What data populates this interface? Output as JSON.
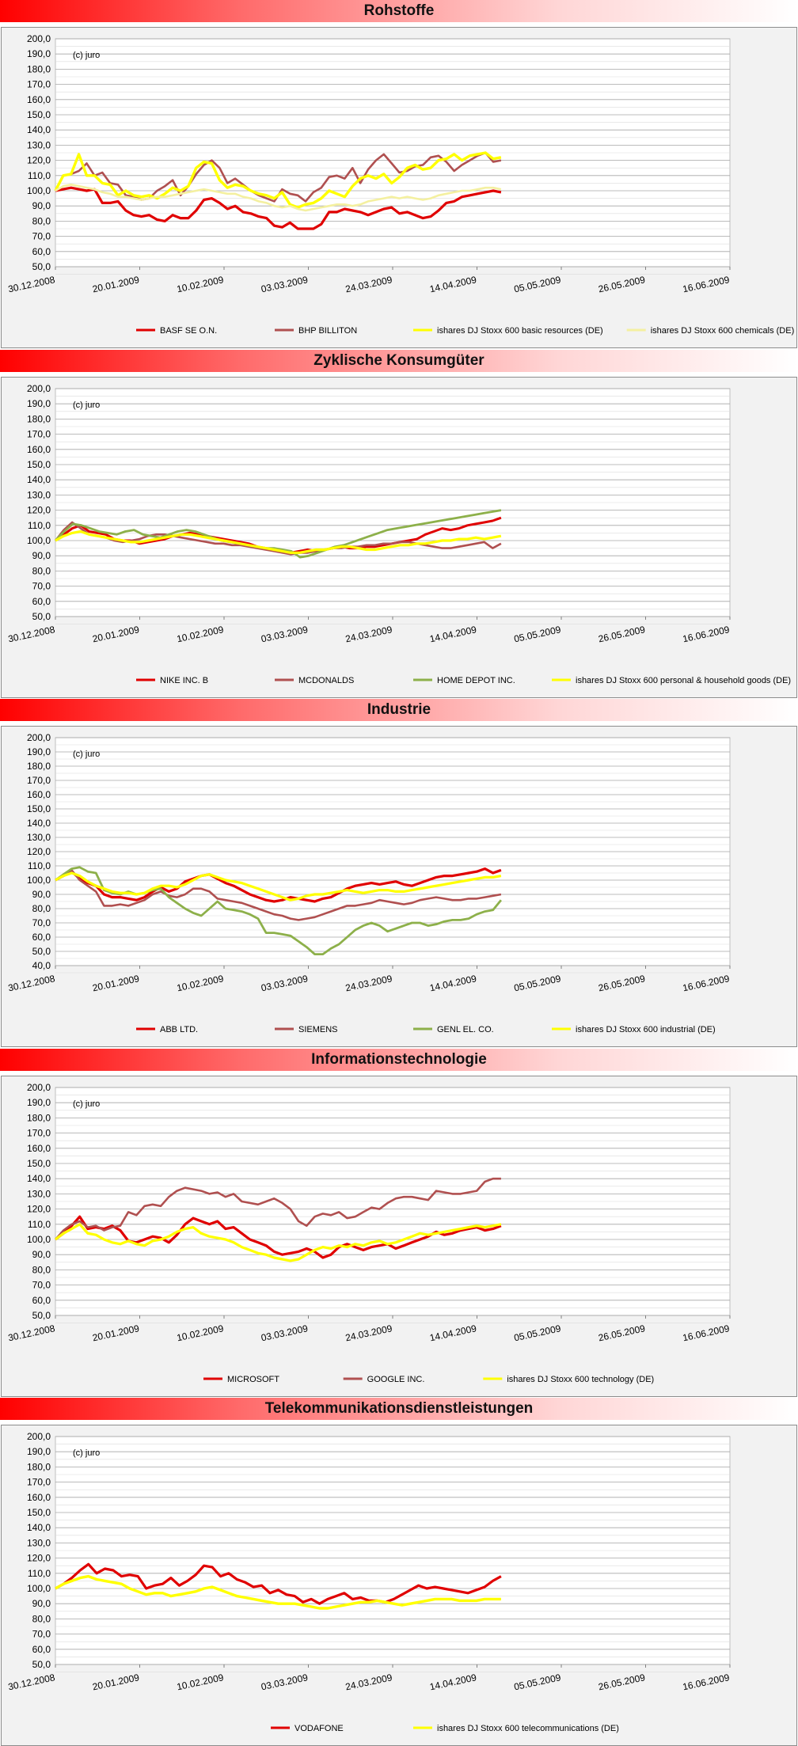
{
  "watermark": "(c) juro",
  "x_ticks": [
    "30.12.2008",
    "20.01.2009",
    "10.02.2009",
    "03.03.2009",
    "24.03.2009",
    "14.04.2009",
    "05.05.2009",
    "26.05.2009",
    "16.06.2009"
  ],
  "colors": {
    "red": "#e00000",
    "brown": "#b05050",
    "yellow": "#ffff00",
    "lightyellow": "#f4f0a0",
    "green": "#8db04a"
  },
  "chart_data": [
    {
      "type": "line",
      "title": "Rohstoffe",
      "ylim": [
        50,
        200
      ],
      "y_step": 10,
      "grid": true,
      "legend": "bottom",
      "series": [
        {
          "name": "BASF SE O.N.",
          "color": "#e00000",
          "width": 3.2,
          "values": [
            100,
            101,
            102,
            101,
            100,
            101,
            92,
            92,
            93,
            87,
            84,
            83,
            84,
            81,
            80,
            84,
            82,
            82,
            87,
            94,
            95,
            92,
            88,
            90,
            86,
            85,
            83,
            82,
            77,
            76,
            79,
            75,
            75,
            75,
            78,
            86,
            86,
            88,
            87,
            86,
            84,
            86,
            88,
            89,
            85,
            86,
            84,
            82,
            83,
            87,
            92,
            93,
            96,
            97,
            98,
            99,
            100,
            99
          ]
        },
        {
          "name": "BHP BILLITON",
          "color": "#b05050",
          "width": 2.6,
          "values": [
            100,
            110,
            111,
            113,
            118,
            110,
            112,
            105,
            104,
            97,
            96,
            94,
            95,
            100,
            103,
            107,
            97,
            103,
            111,
            117,
            120,
            115,
            105,
            108,
            104,
            100,
            97,
            95,
            93,
            101,
            98,
            97,
            93,
            99,
            102,
            109,
            110,
            108,
            115,
            105,
            114,
            120,
            124,
            118,
            112,
            113,
            116,
            117,
            122,
            123,
            119,
            113,
            117,
            120,
            123,
            125,
            119,
            120
          ]
        },
        {
          "name": "ishares DJ Stoxx 600 basic resources  (DE)",
          "color": "#ffff00",
          "width": 3.4,
          "values": [
            100,
            110,
            111,
            124,
            110,
            110,
            105,
            104,
            97,
            100,
            97,
            96,
            97,
            95,
            98,
            102,
            100,
            103,
            115,
            119,
            118,
            107,
            102,
            104,
            103,
            100,
            98,
            97,
            95,
            99,
            91,
            89,
            91,
            92,
            95,
            100,
            98,
            96,
            103,
            108,
            110,
            108,
            111,
            105,
            109,
            115,
            117,
            114,
            115,
            120,
            121,
            124,
            120,
            123,
            124,
            125,
            121,
            122
          ]
        },
        {
          "name": "ishares DJ Stoxx 600 chemicals  (DE)",
          "color": "#f4f0a0",
          "width": 2.6,
          "values": [
            100,
            103,
            104,
            103,
            102,
            101,
            99,
            98,
            96,
            96,
            95,
            94,
            95,
            96,
            96,
            97,
            98,
            99,
            100,
            101,
            100,
            99,
            98,
            98,
            96,
            95,
            93,
            92,
            90,
            89,
            90,
            88,
            87,
            88,
            89,
            90,
            91,
            91,
            90,
            91,
            93,
            94,
            95,
            96,
            95,
            96,
            95,
            94,
            95,
            97,
            98,
            99,
            100,
            100,
            101,
            102,
            102,
            101
          ]
        }
      ]
    },
    {
      "type": "line",
      "title": "Zyklische Konsumgüter",
      "ylim": [
        50,
        200
      ],
      "y_step": 10,
      "grid": true,
      "legend": "bottom",
      "series": [
        {
          "name": "NIKE INC. B",
          "color": "#e00000",
          "width": 3,
          "values": [
            100,
            104,
            108,
            110,
            106,
            105,
            104,
            101,
            100,
            100,
            98,
            99,
            100,
            101,
            103,
            104,
            105,
            104,
            103,
            102,
            101,
            100,
            99,
            98,
            96,
            95,
            94,
            93,
            92,
            93,
            94,
            93,
            94,
            95,
            96,
            95,
            95,
            96,
            96,
            97,
            98,
            99,
            100,
            101,
            104,
            106,
            108,
            107,
            108,
            110,
            111,
            112,
            113,
            115
          ]
        },
        {
          "name": "MCDONALDS",
          "color": "#b05050",
          "width": 2.6,
          "values": [
            100,
            107,
            112,
            108,
            104,
            103,
            102,
            100,
            99,
            100,
            101,
            103,
            104,
            104,
            103,
            102,
            101,
            100,
            99,
            98,
            98,
            97,
            97,
            96,
            95,
            94,
            93,
            92,
            91,
            92,
            92,
            93,
            94,
            95,
            95,
            96,
            96,
            97,
            97,
            98,
            98,
            99,
            99,
            98,
            97,
            96,
            95,
            95,
            96,
            97,
            98,
            99,
            95,
            98
          ]
        },
        {
          "name": "HOME DEPOT INC.",
          "color": "#8db04a",
          "width": 2.8,
          "values": [
            100,
            106,
            111,
            110,
            108,
            106,
            105,
            104,
            106,
            107,
            104,
            103,
            102,
            104,
            106,
            107,
            106,
            104,
            102,
            100,
            99,
            98,
            97,
            96,
            95,
            95,
            94,
            93,
            89,
            90,
            92,
            94,
            96,
            97,
            99,
            101,
            103,
            105,
            107,
            108,
            109,
            110,
            111,
            112,
            113,
            114,
            115,
            116,
            117,
            118,
            119,
            120
          ]
        },
        {
          "name": "ishares DJ Stoxx 600 personal & household goods (DE)",
          "color": "#ffff00",
          "width": 3.2,
          "values": [
            100,
            103,
            105,
            106,
            104,
            103,
            102,
            101,
            100,
            99,
            99,
            100,
            101,
            102,
            103,
            104,
            104,
            103,
            102,
            101,
            100,
            99,
            98,
            97,
            96,
            95,
            94,
            93,
            92,
            92,
            93,
            94,
            94,
            95,
            96,
            96,
            95,
            94,
            94,
            95,
            96,
            97,
            97,
            98,
            98,
            99,
            100,
            100,
            101,
            101,
            102,
            101,
            102,
            103
          ]
        }
      ]
    },
    {
      "type": "line",
      "title": "Industrie",
      "ylim": [
        40,
        200
      ],
      "y_step": 10,
      "grid": true,
      "legend": "bottom",
      "series": [
        {
          "name": "ABB LTD.",
          "color": "#e00000",
          "width": 3.2,
          "values": [
            100,
            103,
            106,
            101,
            98,
            96,
            90,
            88,
            88,
            87,
            86,
            88,
            92,
            95,
            92,
            94,
            99,
            101,
            103,
            104,
            101,
            98,
            96,
            93,
            90,
            88,
            86,
            85,
            86,
            88,
            87,
            86,
            85,
            87,
            88,
            91,
            94,
            96,
            97,
            98,
            97,
            98,
            99,
            97,
            96,
            98,
            100,
            102,
            103,
            103,
            104,
            105,
            106,
            108,
            105,
            107
          ]
        },
        {
          "name": "SIEMENS",
          "color": "#b05050",
          "width": 2.6,
          "values": [
            100,
            103,
            107,
            100,
            96,
            92,
            82,
            82,
            83,
            82,
            84,
            86,
            90,
            92,
            89,
            88,
            90,
            94,
            94,
            92,
            87,
            86,
            85,
            84,
            82,
            80,
            78,
            76,
            75,
            73,
            72,
            73,
            74,
            76,
            78,
            80,
            82,
            82,
            83,
            84,
            86,
            85,
            84,
            83,
            84,
            86,
            87,
            88,
            87,
            86,
            86,
            87,
            87,
            88,
            89,
            90
          ]
        },
        {
          "name": "GENL EL. CO.",
          "color": "#8db04a",
          "width": 2.8,
          "values": [
            100,
            104,
            108,
            109,
            106,
            105,
            93,
            91,
            90,
            92,
            90,
            91,
            93,
            94,
            88,
            84,
            80,
            77,
            75,
            80,
            85,
            80,
            79,
            78,
            76,
            73,
            63,
            63,
            62,
            61,
            57,
            53,
            48,
            48,
            52,
            55,
            60,
            65,
            68,
            70,
            68,
            64,
            66,
            68,
            70,
            70,
            68,
            69,
            71,
            72,
            72,
            73,
            76,
            78,
            79,
            86
          ]
        },
        {
          "name": "ishares DJ Stoxx 600 industrial (DE)",
          "color": "#ffff00",
          "width": 3.2,
          "values": [
            100,
            103,
            105,
            103,
            99,
            96,
            94,
            92,
            91,
            91,
            90,
            91,
            94,
            96,
            96,
            95,
            97,
            100,
            103,
            104,
            102,
            100,
            99,
            98,
            96,
            94,
            92,
            90,
            88,
            86,
            87,
            89,
            90,
            90,
            91,
            92,
            93,
            92,
            91,
            92,
            93,
            93,
            92,
            92,
            93,
            94,
            95,
            96,
            97,
            98,
            99,
            100,
            101,
            102,
            102,
            103
          ]
        }
      ]
    },
    {
      "type": "line",
      "title": "Informationstechnologie",
      "ylim": [
        50,
        200
      ],
      "y_step": 10,
      "grid": true,
      "legend": "bottom",
      "series": [
        {
          "name": "MICROSOFT",
          "color": "#e00000",
          "width": 3.2,
          "values": [
            100,
            104,
            109,
            115,
            107,
            108,
            107,
            109,
            106,
            99,
            98,
            100,
            102,
            101,
            98,
            103,
            110,
            114,
            112,
            110,
            112,
            107,
            108,
            104,
            100,
            98,
            96,
            92,
            90,
            91,
            92,
            94,
            92,
            88,
            90,
            95,
            97,
            95,
            93,
            95,
            96,
            97,
            94,
            96,
            98,
            100,
            102,
            105,
            103,
            104,
            106,
            107,
            108,
            106,
            107,
            109
          ]
        },
        {
          "name": "GOOGLE INC.",
          "color": "#b05050",
          "width": 2.6,
          "values": [
            100,
            106,
            110,
            112,
            108,
            109,
            106,
            108,
            109,
            118,
            116,
            122,
            123,
            122,
            128,
            132,
            134,
            133,
            132,
            130,
            131,
            128,
            130,
            125,
            124,
            123,
            125,
            127,
            124,
            120,
            112,
            109,
            115,
            117,
            116,
            118,
            114,
            115,
            118,
            121,
            120,
            124,
            127,
            128,
            128,
            127,
            126,
            132,
            131,
            130,
            130,
            131,
            132,
            138,
            140,
            140
          ]
        },
        {
          "name": "ishares DJ Stoxx 600 technology  (DE)",
          "color": "#ffff00",
          "width": 3.2,
          "values": [
            100,
            104,
            107,
            110,
            104,
            103,
            100,
            98,
            97,
            99,
            97,
            96,
            99,
            100,
            102,
            105,
            107,
            108,
            104,
            102,
            101,
            100,
            98,
            95,
            93,
            91,
            90,
            88,
            87,
            86,
            87,
            90,
            93,
            95,
            94,
            96,
            95,
            97,
            96,
            98,
            99,
            97,
            98,
            100,
            102,
            104,
            103,
            104,
            105,
            106,
            107,
            108,
            109,
            108,
            109,
            110
          ]
        }
      ]
    },
    {
      "type": "line",
      "title": "Telekommunikationsdienstleistungen",
      "ylim": [
        50,
        200
      ],
      "y_step": 10,
      "grid": true,
      "legend": "bottom",
      "series": [
        {
          "name": "VODAFONE",
          "color": "#e00000",
          "width": 3.2,
          "values": [
            100,
            103,
            107,
            112,
            116,
            110,
            113,
            112,
            108,
            109,
            108,
            100,
            102,
            103,
            107,
            102,
            105,
            109,
            115,
            114,
            108,
            110,
            106,
            104,
            101,
            102,
            97,
            99,
            96,
            95,
            91,
            93,
            90,
            93,
            95,
            97,
            93,
            94,
            92,
            92,
            91,
            93,
            96,
            99,
            102,
            100,
            101,
            100,
            99,
            98,
            97,
            99,
            101,
            105,
            108
          ]
        },
        {
          "name": "ishares DJ Stoxx 600 telecommunications  (DE)",
          "color": "#ffff00",
          "width": 3.4,
          "values": [
            100,
            103,
            105,
            107,
            108,
            106,
            105,
            104,
            103,
            100,
            98,
            96,
            97,
            97,
            95,
            96,
            97,
            98,
            100,
            101,
            99,
            97,
            95,
            94,
            93,
            92,
            91,
            90,
            90,
            90,
            89,
            88,
            87,
            87,
            88,
            89,
            90,
            91,
            91,
            92,
            91,
            90,
            89,
            90,
            91,
            92,
            93,
            93,
            93,
            92,
            92,
            92,
            93,
            93,
            93
          ]
        }
      ]
    }
  ]
}
